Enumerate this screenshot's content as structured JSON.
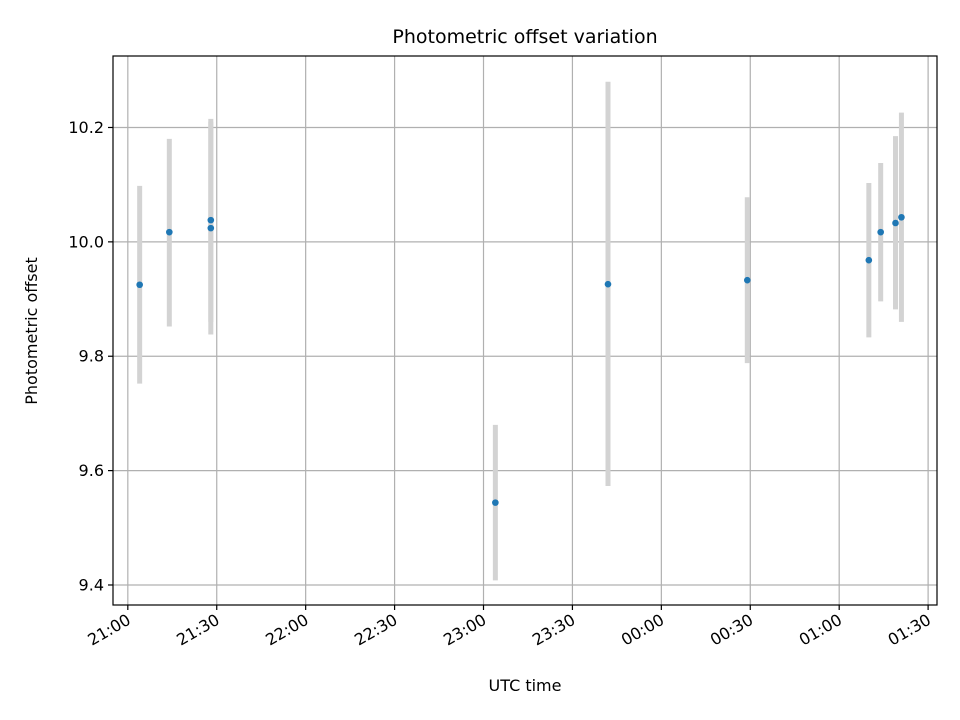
{
  "chart_data": {
    "type": "scatter",
    "title": "Photometric offset variation",
    "xlabel": "UTC time",
    "ylabel": "Photometric offset",
    "x_unit": "UTC",
    "xlim": [
      "20:55",
      "01:33"
    ],
    "ylim": [
      9.365,
      10.325
    ],
    "grid": true,
    "x_ticks": [
      "21:00",
      "21:30",
      "22:00",
      "22:30",
      "23:00",
      "23:30",
      "00:00",
      "00:30",
      "01:00",
      "01:30"
    ],
    "y_ticks": [
      "9.4",
      "9.6",
      "9.8",
      "10.0",
      "10.2"
    ],
    "marker_color": "#1f77b4",
    "errorbar_color": "#d3d3d3",
    "points": [
      {
        "t": "21:04",
        "y": 9.925,
        "low": 9.752,
        "high": 10.098
      },
      {
        "t": "21:14",
        "y": 10.017,
        "low": 9.852,
        "high": 10.18
      },
      {
        "t": "21:28",
        "y": 10.024,
        "low": 9.838,
        "high": 10.21
      },
      {
        "t": "21:28",
        "y": 10.038,
        "low": 9.86,
        "high": 10.215
      },
      {
        "t": "23:04",
        "y": 9.544,
        "low": 9.408,
        "high": 9.68
      },
      {
        "t": "23:42",
        "y": 9.926,
        "low": 9.573,
        "high": 10.28
      },
      {
        "t": "00:29",
        "y": 9.933,
        "low": 9.788,
        "high": 10.078
      },
      {
        "t": "01:10",
        "y": 9.968,
        "low": 9.833,
        "high": 10.103
      },
      {
        "t": "01:14",
        "y": 10.017,
        "low": 9.896,
        "high": 10.138
      },
      {
        "t": "01:19",
        "y": 10.033,
        "low": 9.882,
        "high": 10.185
      },
      {
        "t": "01:21",
        "y": 10.043,
        "low": 9.86,
        "high": 10.226
      }
    ]
  }
}
